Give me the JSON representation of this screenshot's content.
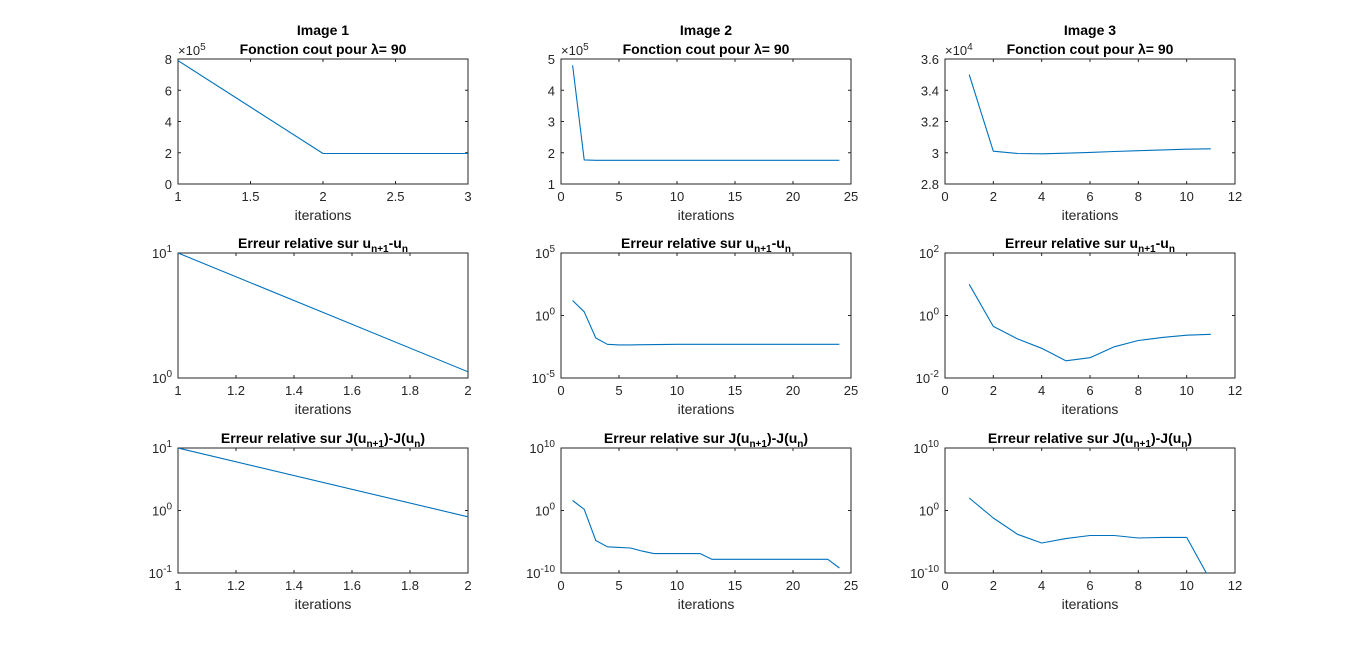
{
  "colors": {
    "series": "#0072BD",
    "axes": "#262626"
  },
  "chart_data": [
    {
      "type": "line",
      "title": [
        "Image 1",
        "Fonction cout pour λ= 90"
      ],
      "xlabel": "iterations",
      "xlim": [
        1,
        3
      ],
      "xticks": [
        "1",
        "1.5",
        "2",
        "2.5",
        "3"
      ],
      "yscale": "linear",
      "ylim": [
        0,
        8
      ],
      "yticks": [
        "0",
        "2",
        "4",
        "6",
        "8"
      ],
      "yexponent": "10^5",
      "x": [
        1,
        2,
        3
      ],
      "y": [
        7.9,
        1.95,
        1.95
      ]
    },
    {
      "type": "line",
      "title": [
        "Image 2",
        "Fonction cout pour λ= 90"
      ],
      "xlabel": "iterations",
      "xlim": [
        0,
        25
      ],
      "xticks": [
        "0",
        "5",
        "10",
        "15",
        "20",
        "25"
      ],
      "yscale": "linear",
      "ylim": [
        1,
        5
      ],
      "yticks": [
        "1",
        "2",
        "3",
        "4",
        "5"
      ],
      "yexponent": "10^5",
      "x": [
        1,
        2,
        3,
        24
      ],
      "y": [
        4.8,
        1.77,
        1.76,
        1.76
      ]
    },
    {
      "type": "line",
      "title": [
        "Image 3",
        "Fonction cout pour λ= 90"
      ],
      "xlabel": "iterations",
      "xlim": [
        0,
        12
      ],
      "xticks": [
        "0",
        "2",
        "4",
        "6",
        "8",
        "10",
        "12"
      ],
      "yscale": "linear",
      "ylim": [
        2.8,
        3.6
      ],
      "yticks": [
        "2.8",
        "3",
        "3.2",
        "3.4",
        "3.6"
      ],
      "yexponent": "10^4",
      "x": [
        1,
        2,
        3,
        4,
        5,
        6,
        7,
        8,
        9,
        10,
        11
      ],
      "y": [
        3.5,
        3.01,
        2.995,
        2.993,
        2.997,
        3.002,
        3.008,
        3.013,
        3.018,
        3.023,
        3.025
      ]
    },
    {
      "type": "line",
      "title": [
        "Erreur relative sur u_{n+1}-u_n"
      ],
      "xlabel": "iterations",
      "xlim": [
        1,
        2
      ],
      "xticks": [
        "1",
        "1.2",
        "1.4",
        "1.6",
        "1.8",
        "2"
      ],
      "yscale": "log",
      "ylim": [
        0,
        1
      ],
      "yticks": [
        "10^1",
        "10^0"
      ],
      "ytick_exps": [
        1,
        0
      ],
      "x": [
        1,
        2
      ],
      "y": [
        1,
        0.05
      ]
    },
    {
      "type": "line",
      "title": [
        "Erreur relative sur u_{n+1}-u_n"
      ],
      "xlabel": "iterations",
      "xlim": [
        0,
        25
      ],
      "xticks": [
        "0",
        "5",
        "10",
        "15",
        "20",
        "25"
      ],
      "yscale": "log",
      "ylim": [
        -5,
        5
      ],
      "yticks": [
        "10^5",
        "10^0",
        "10^-5"
      ],
      "ytick_exps": [
        5,
        0,
        -5
      ],
      "x": [
        1,
        2,
        3,
        4,
        5,
        6,
        10,
        15,
        20,
        24
      ],
      "y": [
        1.2,
        0.3,
        -1.8,
        -2.3,
        -2.35,
        -2.35,
        -2.3,
        -2.3,
        -2.3,
        -2.3
      ]
    },
    {
      "type": "line",
      "title": [
        "Erreur relative sur u_{n+1}-u_n"
      ],
      "xlabel": "iterations",
      "xlim": [
        0,
        12
      ],
      "xticks": [
        "0",
        "2",
        "4",
        "6",
        "8",
        "10",
        "12"
      ],
      "yscale": "log",
      "ylim": [
        -2,
        2
      ],
      "yticks": [
        "10^2",
        "10^0",
        "10^-2"
      ],
      "ytick_exps": [
        2,
        0,
        -2
      ],
      "x": [
        1,
        2,
        3,
        4,
        5,
        6,
        7,
        8,
        9,
        10,
        11
      ],
      "y": [
        1.0,
        -0.35,
        -0.75,
        -1.05,
        -1.45,
        -1.35,
        -1.0,
        -0.8,
        -0.7,
        -0.63,
        -0.6
      ]
    },
    {
      "type": "line",
      "title": [
        "Erreur relative sur J(u_{n+1})-J(u_n)"
      ],
      "xlabel": "iterations",
      "xlim": [
        1,
        2
      ],
      "xticks": [
        "1",
        "1.2",
        "1.4",
        "1.6",
        "1.8",
        "2"
      ],
      "yscale": "log",
      "ylim": [
        -1,
        1
      ],
      "yticks": [
        "10^1",
        "10^0",
        "10^-1"
      ],
      "ytick_exps": [
        1,
        0,
        -1
      ],
      "x": [
        1,
        2
      ],
      "y": [
        1.0,
        -0.1
      ]
    },
    {
      "type": "line",
      "title": [
        "Erreur relative sur J(u_{n+1})-J(u_n)"
      ],
      "xlabel": "iterations",
      "xlim": [
        0,
        25
      ],
      "xticks": [
        "0",
        "5",
        "10",
        "15",
        "20",
        "25"
      ],
      "yscale": "log",
      "ylim": [
        -10,
        10
      ],
      "yticks": [
        "10^10",
        "10^0",
        "10^-10"
      ],
      "ytick_exps": [
        10,
        0,
        -10
      ],
      "x": [
        1,
        2,
        3,
        4,
        5,
        6,
        7,
        8,
        9,
        10,
        11,
        12,
        13,
        14,
        15,
        20,
        23,
        24
      ],
      "y": [
        1.6,
        0.2,
        -4.8,
        -5.8,
        -5.9,
        -6.0,
        -6.5,
        -6.9,
        -6.9,
        -6.9,
        -6.9,
        -6.9,
        -7.8,
        -7.8,
        -7.8,
        -7.8,
        -7.8,
        -9.2
      ]
    },
    {
      "type": "line",
      "title": [
        "Erreur relative sur J(u_{n+1})-J(u_n)"
      ],
      "xlabel": "iterations",
      "xlim": [
        0,
        12
      ],
      "xticks": [
        "0",
        "2",
        "4",
        "6",
        "8",
        "10",
        "12"
      ],
      "yscale": "log",
      "ylim": [
        -10,
        10
      ],
      "yticks": [
        "10^10",
        "10^0",
        "10^-10"
      ],
      "ytick_exps": [
        10,
        0,
        -10
      ],
      "x": [
        1,
        2,
        3,
        4,
        5,
        6,
        7,
        8,
        9,
        10,
        11
      ],
      "y": [
        2.0,
        -1.2,
        -3.8,
        -5.2,
        -4.5,
        -4.0,
        -4.0,
        -4.4,
        -4.3,
        -4.3,
        -11.3
      ]
    }
  ]
}
